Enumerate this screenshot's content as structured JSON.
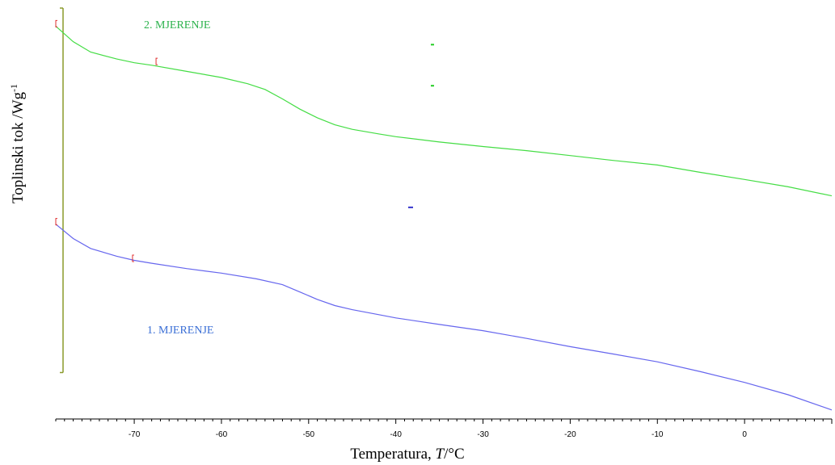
{
  "chart_data": {
    "type": "line",
    "title": "",
    "xlabel_prefix": "Temperatura,  ",
    "xlabel_var": "T",
    "xlabel_unit": "/°C",
    "ylabel": "Toplinski tok /Wg",
    "ylabel_sup": "-1",
    "xlim": [
      -79,
      10
    ],
    "ylim": [
      0,
      100
    ],
    "x_ticks": [
      -70,
      -60,
      -50,
      -40,
      -30,
      -20,
      -10,
      0
    ],
    "x_tick_labels": [
      "-70",
      "-60",
      "-50",
      "-40",
      "-30",
      "-20",
      "-10",
      "0"
    ],
    "grid": false,
    "legend": "none",
    "series": [
      {
        "name": "2. MJERENJE",
        "color": "#44dd44",
        "label_color": "#2bb24c",
        "points": [
          [
            -79,
            95.6
          ],
          [
            -77,
            91.8
          ],
          [
            -75,
            89.3
          ],
          [
            -72,
            87.6
          ],
          [
            -70,
            86.7
          ],
          [
            -68,
            86.1
          ],
          [
            -64,
            84.6
          ],
          [
            -60,
            83.1
          ],
          [
            -57,
            81.6
          ],
          [
            -55,
            80.2
          ],
          [
            -53,
            77.9
          ],
          [
            -51,
            75.4
          ],
          [
            -49,
            73.3
          ],
          [
            -47,
            71.6
          ],
          [
            -45,
            70.5
          ],
          [
            -42,
            69.4
          ],
          [
            -40,
            68.7
          ],
          [
            -35,
            67.4
          ],
          [
            -30,
            66.3
          ],
          [
            -25,
            65.3
          ],
          [
            -20,
            64.1
          ],
          [
            -15,
            62.9
          ],
          [
            -10,
            61.8
          ],
          [
            -5,
            60.0
          ],
          [
            0,
            58.3
          ],
          [
            5,
            56.5
          ],
          [
            10,
            54.3
          ]
        ]
      },
      {
        "name": "1. MJERENJE",
        "color": "#6666ee",
        "label_color": "#3b6fd6",
        "points": [
          [
            -79,
            47.4
          ],
          [
            -77,
            43.9
          ],
          [
            -75,
            41.5
          ],
          [
            -72,
            39.6
          ],
          [
            -70,
            38.6
          ],
          [
            -68,
            37.9
          ],
          [
            -64,
            36.6
          ],
          [
            -60,
            35.5
          ],
          [
            -56,
            34.1
          ],
          [
            -53,
            32.7
          ],
          [
            -51,
            30.9
          ],
          [
            -49,
            29.1
          ],
          [
            -47,
            27.6
          ],
          [
            -45,
            26.6
          ],
          [
            -42,
            25.4
          ],
          [
            -40,
            24.6
          ],
          [
            -35,
            23.0
          ],
          [
            -30,
            21.5
          ],
          [
            -25,
            19.6
          ],
          [
            -20,
            17.6
          ],
          [
            -15,
            15.8
          ],
          [
            -10,
            13.9
          ],
          [
            -5,
            11.5
          ],
          [
            0,
            8.9
          ],
          [
            5,
            5.9
          ],
          [
            10,
            2.2
          ]
        ]
      }
    ],
    "reference_bar": {
      "x": -79,
      "y_from": 11.3,
      "y_to": 100,
      "color": "#8a9a2a"
    },
    "red_brackets": [
      [
        -79,
        96.2
      ],
      [
        -67.5,
        87.0
      ],
      [
        -79,
        48.0
      ],
      [
        -70.2,
        39.1
      ]
    ],
    "green_markers": [
      [
        -35.8,
        91.1
      ],
      [
        -35.8,
        81.1
      ]
    ],
    "blue_markers": [
      [
        -38.3,
        51.5
      ]
    ]
  }
}
